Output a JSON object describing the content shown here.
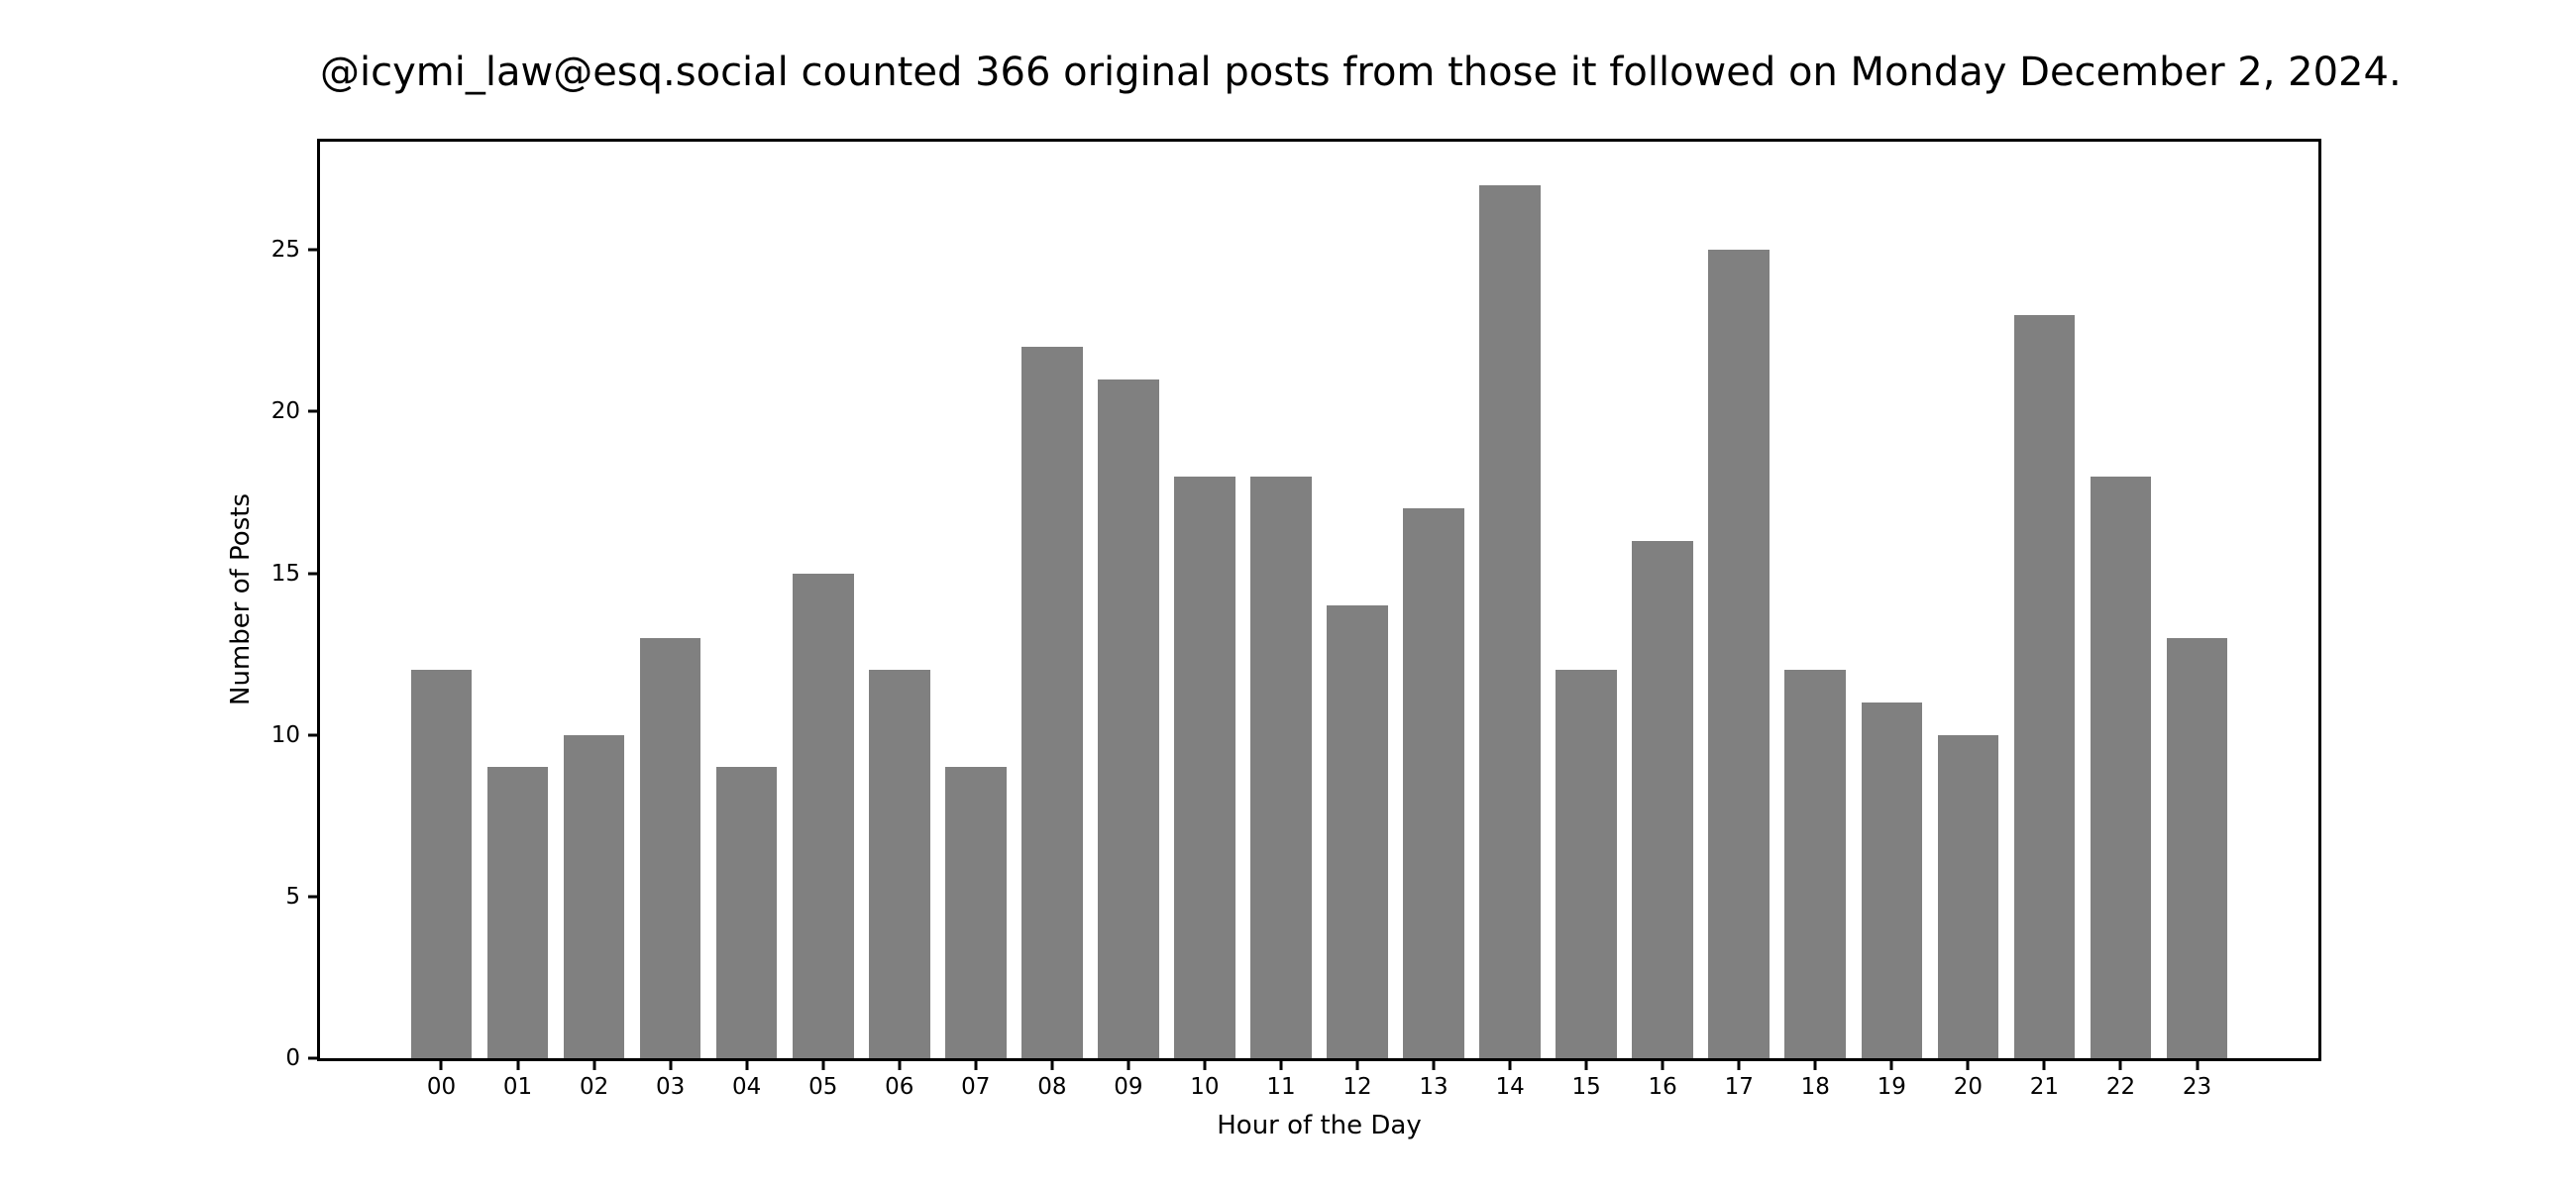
{
  "chart_data": {
    "type": "bar",
    "title": "@icymi_law@esq.social counted 366 original posts from those it followed on Monday December 2, 2024.",
    "xlabel": "Hour of the Day",
    "ylabel": "Number of Posts",
    "categories": [
      "00",
      "01",
      "02",
      "03",
      "04",
      "05",
      "06",
      "07",
      "08",
      "09",
      "10",
      "11",
      "12",
      "13",
      "14",
      "15",
      "16",
      "17",
      "18",
      "19",
      "20",
      "21",
      "22",
      "23"
    ],
    "values": [
      12,
      9,
      10,
      13,
      9,
      15,
      12,
      9,
      22,
      21,
      18,
      18,
      14,
      17,
      27,
      12,
      16,
      25,
      12,
      11,
      10,
      23,
      18,
      13
    ],
    "total_posts": 366,
    "yticks": [
      0,
      5,
      10,
      15,
      20,
      25
    ],
    "ylim": [
      0,
      28.35
    ],
    "xlim": [
      -1.59,
      24.59
    ],
    "bar_width_fraction": 0.8,
    "bar_color": "#808080",
    "text_color": "#000000",
    "background_color": "#ffffff",
    "grid": false,
    "legend": null
  }
}
